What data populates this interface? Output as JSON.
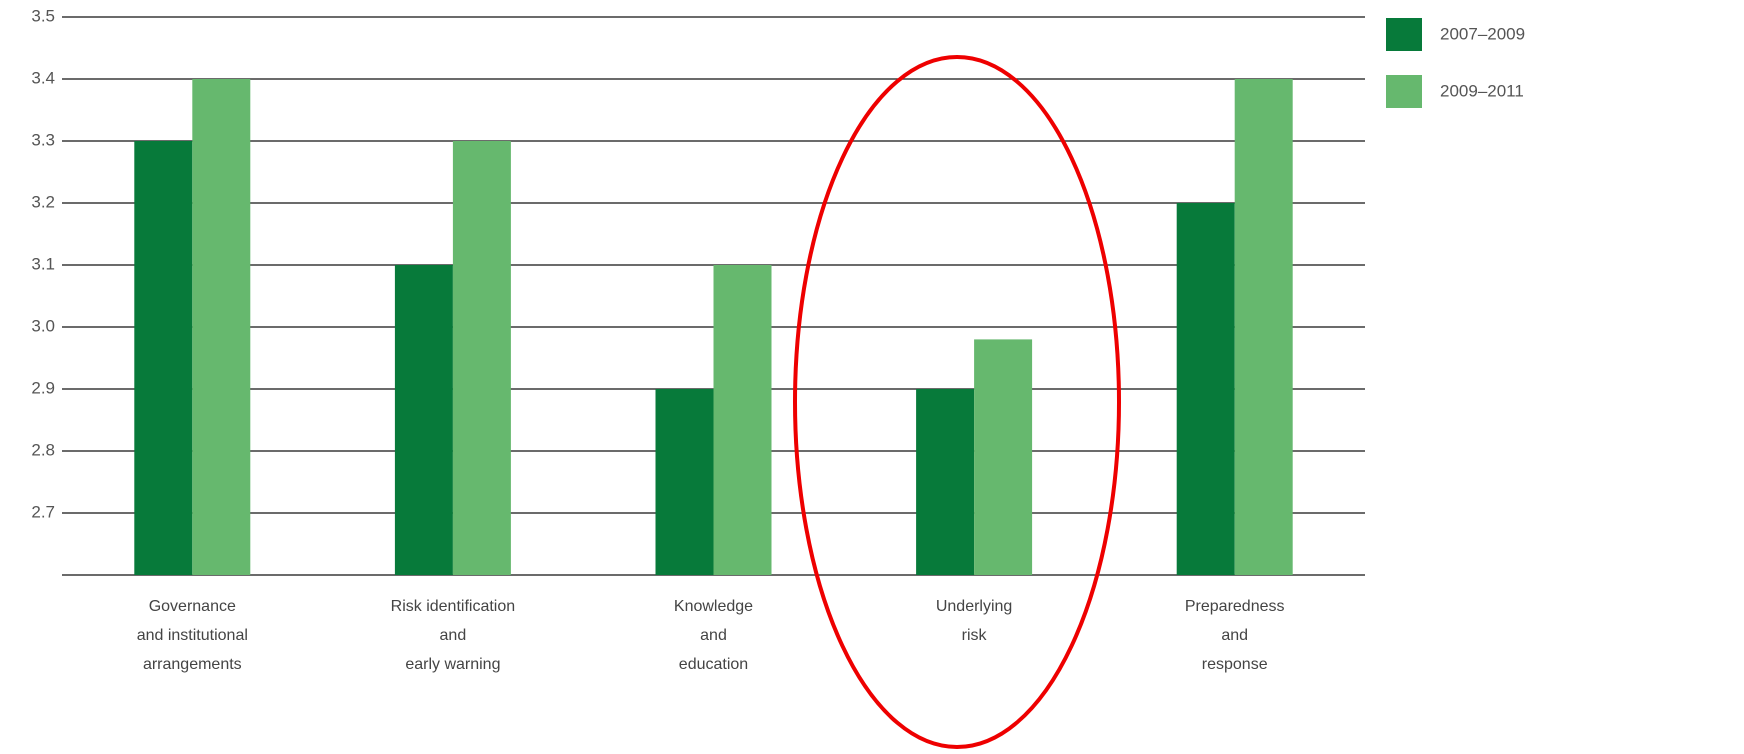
{
  "chart_data": {
    "type": "bar",
    "categories": [
      "Governance\nand institutional\narrangements",
      "Risk identification\nand\nearly warning",
      "Knowledge\nand\neducation",
      "Underlying\nrisk",
      "Preparedness\nand\nresponse"
    ],
    "series": [
      {
        "name": "2007–2009",
        "color": "#077a3a",
        "values": [
          3.3,
          3.1,
          2.9,
          2.9,
          3.2
        ]
      },
      {
        "name": "2009–2011",
        "color": "#66b86e",
        "values": [
          3.4,
          3.3,
          3.1,
          2.98,
          3.4
        ]
      }
    ],
    "ylim": [
      2.6,
      3.5
    ],
    "yticks": [
      2.7,
      2.8,
      2.9,
      {
        "value": 3,
        "label": "3.0"
      },
      3.1,
      3.2,
      3.3,
      3.4,
      3.5
    ],
    "grid": true
  }
}
